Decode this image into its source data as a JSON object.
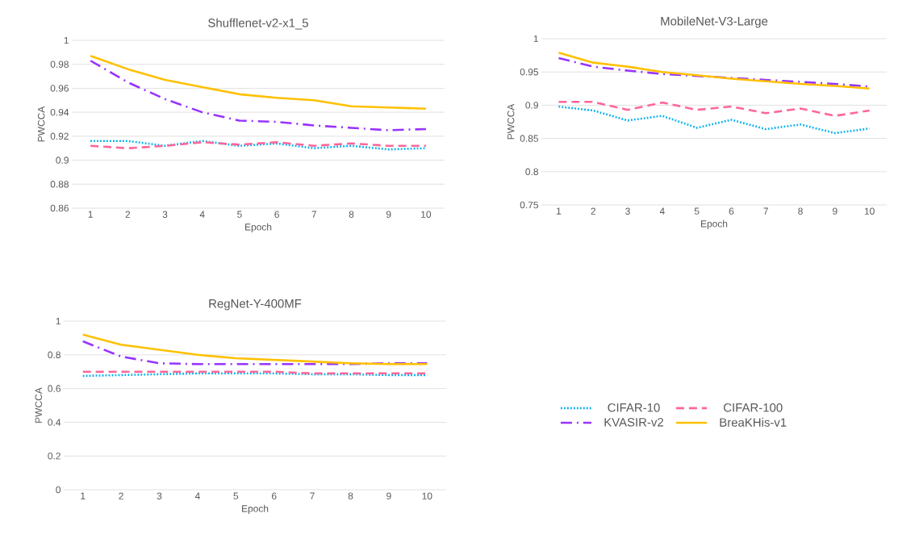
{
  "chart_data": [
    {
      "type": "line",
      "title": "Shufflenet-v2-x1_5",
      "xlabel": "Epoch",
      "ylabel": "PWCCA",
      "categories": [
        "1",
        "2",
        "3",
        "4",
        "5",
        "6",
        "7",
        "8",
        "9",
        "10"
      ],
      "ylim": [
        0.86,
        1
      ],
      "yticks": [
        0.86,
        0.88,
        0.9,
        0.92,
        0.94,
        0.96,
        0.98,
        1
      ],
      "grid": "y",
      "series": [
        {
          "color": "#00b0f0",
          "line_style": "dotted",
          "values": [
            0.916,
            0.916,
            0.912,
            0.916,
            0.912,
            0.914,
            0.91,
            0.912,
            0.909,
            0.91
          ]
        },
        {
          "color": "#ff6699",
          "line_style": "dashed",
          "values": [
            0.912,
            0.91,
            0.912,
            0.915,
            0.913,
            0.915,
            0.912,
            0.914,
            0.912,
            0.912
          ]
        },
        {
          "color": "#9933ff",
          "line_style": "dashdot",
          "values": [
            0.983,
            0.965,
            0.951,
            0.94,
            0.933,
            0.932,
            0.929,
            0.927,
            0.925,
            0.926
          ]
        },
        {
          "color": "#ffc000",
          "line_style": "solid",
          "values": [
            0.987,
            0.976,
            0.967,
            0.961,
            0.955,
            0.952,
            0.95,
            0.945,
            0.944,
            0.943
          ]
        }
      ]
    },
    {
      "type": "line",
      "title": "MobileNet-V3-Large",
      "xlabel": "Epoch",
      "ylabel": "PWCCA",
      "categories": [
        "1",
        "2",
        "3",
        "4",
        "5",
        "6",
        "7",
        "8",
        "9",
        "10"
      ],
      "ylim": [
        0.75,
        1
      ],
      "yticks": [
        0.75,
        0.8,
        0.85,
        0.9,
        0.95,
        1
      ],
      "grid": "y",
      "series": [
        {
          "color": "#00b0f0",
          "line_style": "dotted",
          "values": [
            0.898,
            0.892,
            0.877,
            0.884,
            0.866,
            0.878,
            0.864,
            0.871,
            0.858,
            0.865
          ]
        },
        {
          "color": "#ff6699",
          "line_style": "dashed",
          "values": [
            0.905,
            0.905,
            0.893,
            0.904,
            0.893,
            0.898,
            0.888,
            0.895,
            0.884,
            0.892
          ]
        },
        {
          "color": "#9933ff",
          "line_style": "dashdot",
          "values": [
            0.971,
            0.958,
            0.952,
            0.947,
            0.944,
            0.941,
            0.938,
            0.935,
            0.932,
            0.928
          ]
        },
        {
          "color": "#ffc000",
          "line_style": "solid",
          "values": [
            0.979,
            0.964,
            0.958,
            0.95,
            0.945,
            0.94,
            0.936,
            0.932,
            0.929,
            0.925
          ]
        }
      ]
    },
    {
      "type": "line",
      "title": "RegNet-Y-400MF",
      "xlabel": "Epoch",
      "ylabel": "PWCCA",
      "categories": [
        "1",
        "2",
        "3",
        "4",
        "5",
        "6",
        "7",
        "8",
        "9",
        "10"
      ],
      "ylim": [
        0,
        1
      ],
      "yticks": [
        0,
        0.2,
        0.4,
        0.6,
        0.8,
        1
      ],
      "grid": "y",
      "legend": "right",
      "series": [
        {
          "name": "CIFAR-10",
          "color": "#00b0f0",
          "line_style": "dotted",
          "values": [
            0.675,
            0.68,
            0.685,
            0.69,
            0.69,
            0.69,
            0.685,
            0.685,
            0.68,
            0.68
          ]
        },
        {
          "name": "CIFAR-100",
          "color": "#ff6699",
          "line_style": "dashed",
          "values": [
            0.7,
            0.7,
            0.7,
            0.7,
            0.7,
            0.7,
            0.69,
            0.69,
            0.69,
            0.69
          ]
        },
        {
          "name": "KVASIR-v2",
          "color": "#9933ff",
          "line_style": "dashdot",
          "values": [
            0.88,
            0.79,
            0.75,
            0.745,
            0.745,
            0.745,
            0.745,
            0.745,
            0.75,
            0.75
          ]
        },
        {
          "name": "BreaKHis-v1",
          "color": "#ffc000",
          "line_style": "solid",
          "values": [
            0.92,
            0.86,
            0.83,
            0.8,
            0.78,
            0.77,
            0.76,
            0.75,
            0.745,
            0.745
          ]
        }
      ]
    }
  ]
}
